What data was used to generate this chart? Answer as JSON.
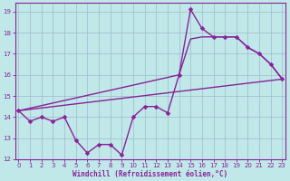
{
  "xlabel": "Windchill (Refroidissement éolien,°C)",
  "bg_color": "#c0e8e8",
  "grid_color": "#a0b8cc",
  "line_color": "#882299",
  "line1_x": [
    0,
    1,
    2,
    3,
    4,
    5,
    6,
    7,
    8,
    9,
    10,
    11,
    12,
    13,
    14,
    15,
    16,
    17,
    18,
    19,
    20,
    21,
    22,
    23
  ],
  "line1_y": [
    14.3,
    13.8,
    14.0,
    13.8,
    14.0,
    12.9,
    12.3,
    12.7,
    12.7,
    12.2,
    14.0,
    14.5,
    14.5,
    14.2,
    16.0,
    19.1,
    18.2,
    17.8,
    17.8,
    17.8,
    17.3,
    17.0,
    16.5,
    15.8
  ],
  "line2_x": [
    0,
    14,
    15,
    16,
    17,
    18,
    19,
    20,
    21,
    22,
    23
  ],
  "line2_y": [
    14.3,
    16.0,
    17.7,
    17.8,
    17.8,
    17.8,
    17.8,
    17.3,
    17.0,
    16.5,
    15.8
  ],
  "line3_x": [
    0,
    23
  ],
  "line3_y": [
    14.3,
    15.8
  ],
  "xlim": [
    -0.3,
    23.3
  ],
  "ylim": [
    12.0,
    19.4
  ],
  "xticks": [
    0,
    1,
    2,
    3,
    4,
    5,
    6,
    7,
    8,
    9,
    10,
    11,
    12,
    13,
    14,
    15,
    16,
    17,
    18,
    19,
    20,
    21,
    22,
    23
  ],
  "yticks": [
    12,
    13,
    14,
    15,
    16,
    17,
    18,
    19
  ]
}
